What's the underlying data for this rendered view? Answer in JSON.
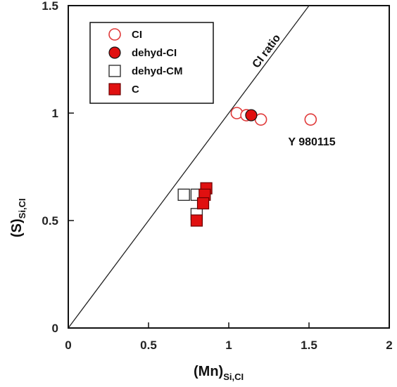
{
  "chart_data": {
    "type": "scatter",
    "xlabel": {
      "main": "(Mn)",
      "sub": "Si,CI"
    },
    "ylabel": {
      "main": "(S)",
      "sub": "Si,CI"
    },
    "xlim": [
      0,
      2
    ],
    "ylim": [
      0,
      1.5
    ],
    "x_ticks": [
      0,
      0.5,
      1,
      1.5,
      2
    ],
    "x_tick_labels": [
      "0",
      "0.5",
      "1",
      "1.5",
      "2"
    ],
    "y_ticks": [
      0,
      0.5,
      1,
      1.5
    ],
    "y_tick_labels": [
      "0",
      "0.5",
      "1",
      "1.5"
    ],
    "grid": false,
    "legend_position": "top-left",
    "reference_line": {
      "label": "CI ratio",
      "slope": 1,
      "intercept": 0
    },
    "annotations": [
      {
        "text": "Y 980115",
        "x": 1.37,
        "y": 0.85
      }
    ],
    "series": [
      {
        "name": "CI",
        "marker": "circle-open",
        "color": "#e03a3a",
        "points": [
          [
            1.05,
            1.0
          ],
          [
            1.11,
            0.99
          ],
          [
            1.2,
            0.97
          ],
          [
            1.51,
            0.97
          ]
        ]
      },
      {
        "name": "dehyd-CI",
        "marker": "circle-filled",
        "color": "#e01010",
        "points": [
          [
            1.14,
            0.99
          ]
        ]
      },
      {
        "name": "dehyd-CM",
        "marker": "square-open",
        "color": "#333333",
        "points": [
          [
            0.72,
            0.62
          ],
          [
            0.8,
            0.62
          ],
          [
            0.8,
            0.53
          ]
        ]
      },
      {
        "name": "C",
        "marker": "square-filled",
        "color": "#e01010",
        "points": [
          [
            0.86,
            0.65
          ],
          [
            0.85,
            0.62
          ],
          [
            0.84,
            0.58
          ],
          [
            0.8,
            0.5
          ]
        ]
      }
    ]
  }
}
